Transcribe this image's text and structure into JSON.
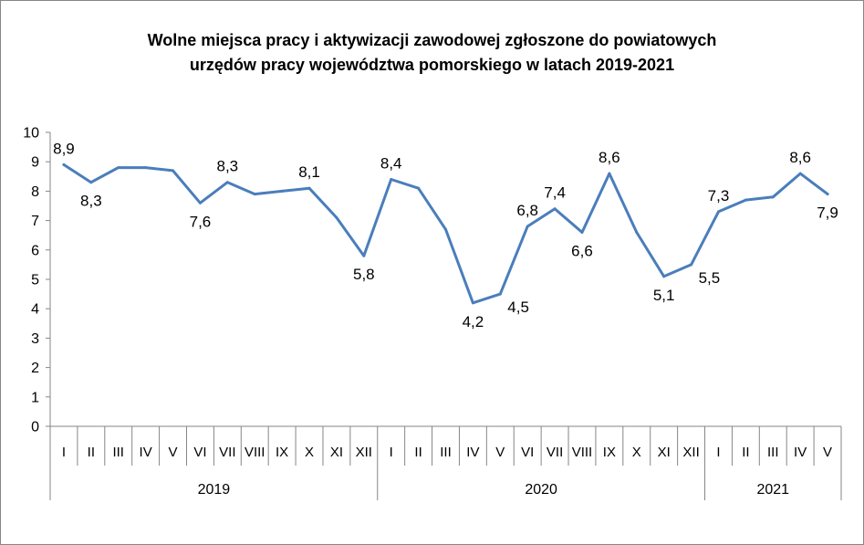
{
  "chart_data": {
    "type": "line",
    "title_line1": "Wolne miejsca pracy i aktywizacji zawodowej zgłoszone do powiatowych",
    "title_line2": "urzędów pracy województwa pomorskiego w latach 2019-2021",
    "xlabel": "",
    "ylabel": "",
    "ylim": [
      0,
      10
    ],
    "yticks": [
      "0",
      "1",
      "2",
      "3",
      "4",
      "5",
      "6",
      "7",
      "8",
      "9",
      "10"
    ],
    "grid": false,
    "legend": "none",
    "color": "#4a7ebb",
    "categories": [
      "I",
      "II",
      "III",
      "IV",
      "V",
      "VI",
      "VII",
      "VIII",
      "IX",
      "X",
      "XI",
      "XII",
      "I",
      "II",
      "III",
      "IV",
      "V",
      "VI",
      "VII",
      "VIII",
      "IX",
      "X",
      "XI",
      "XII",
      "I",
      "II",
      "III",
      "IV",
      "V"
    ],
    "groups": [
      {
        "label": "2019",
        "count": 12
      },
      {
        "label": "2020",
        "count": 12
      },
      {
        "label": "2021",
        "count": 5
      }
    ],
    "values": [
      8.9,
      8.3,
      8.8,
      8.8,
      8.7,
      7.6,
      8.3,
      7.9,
      8.0,
      8.1,
      7.1,
      5.8,
      8.4,
      8.1,
      6.7,
      4.2,
      4.5,
      6.8,
      7.4,
      6.6,
      8.6,
      6.6,
      5.1,
      5.5,
      7.3,
      7.7,
      7.8,
      8.6,
      7.9
    ],
    "data_labels": [
      {
        "index": 0,
        "text": "8,9",
        "pos": "above"
      },
      {
        "index": 1,
        "text": "8,3",
        "pos": "below"
      },
      {
        "index": 5,
        "text": "7,6",
        "pos": "below"
      },
      {
        "index": 6,
        "text": "8,3",
        "pos": "above"
      },
      {
        "index": 9,
        "text": "8,1",
        "pos": "above"
      },
      {
        "index": 11,
        "text": "5,8",
        "pos": "below"
      },
      {
        "index": 12,
        "text": "8,4",
        "pos": "above"
      },
      {
        "index": 15,
        "text": "4,2",
        "pos": "below"
      },
      {
        "index": 16,
        "text": "4,5",
        "pos": "right"
      },
      {
        "index": 17,
        "text": "6,8",
        "pos": "above"
      },
      {
        "index": 18,
        "text": "7,4",
        "pos": "above"
      },
      {
        "index": 19,
        "text": "6,6",
        "pos": "below"
      },
      {
        "index": 20,
        "text": "8,6",
        "pos": "above"
      },
      {
        "index": 22,
        "text": "5,1",
        "pos": "below"
      },
      {
        "index": 23,
        "text": "5,5",
        "pos": "right"
      },
      {
        "index": 24,
        "text": "7,3",
        "pos": "above"
      },
      {
        "index": 27,
        "text": "8,6",
        "pos": "above"
      },
      {
        "index": 28,
        "text": "7,9",
        "pos": "below"
      }
    ]
  }
}
